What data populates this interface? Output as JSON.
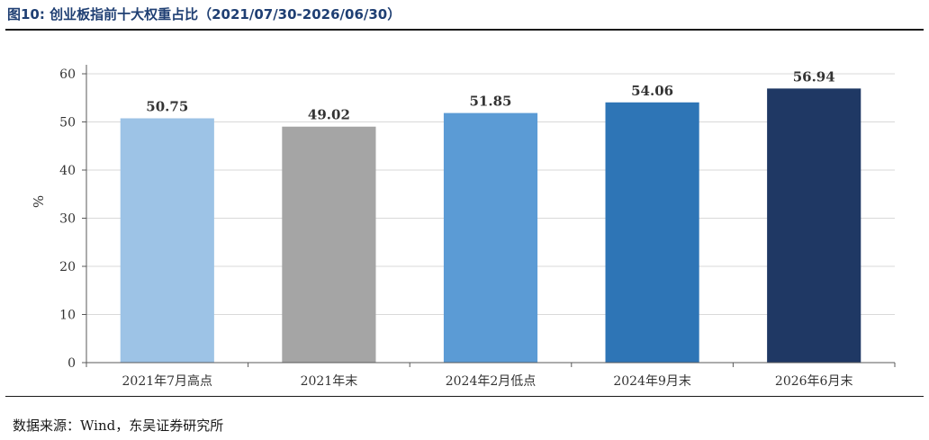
{
  "figure": {
    "title": "图10:  创业板指前十大权重占比（2021/07/30-2026/06/30）",
    "source": "数据来源：Wind，东吴证券研究所"
  },
  "colors": {
    "title": "#1f3f73",
    "bars": [
      "#9dc3e6",
      "#a5a5a5",
      "#5b9bd5",
      "#2e75b6",
      "#1f3864"
    ],
    "grid": "#d9d9d9",
    "axis": "#595959"
  },
  "chart_data": {
    "type": "bar",
    "categories": [
      "2021年7月高点",
      "2021年末",
      "2024年2月低点",
      "2024年9月末",
      "2026年6月末"
    ],
    "values": [
      50.75,
      49.02,
      51.85,
      54.06,
      56.94
    ],
    "data_labels": [
      "50.75",
      "49.02",
      "51.85",
      "54.06",
      "56.94"
    ],
    "title": "",
    "xlabel": "",
    "ylabel": "%",
    "ylim": [
      0,
      60
    ],
    "yticks": [
      0,
      10,
      20,
      30,
      40,
      50,
      60
    ],
    "grid": true,
    "legend": "none"
  }
}
